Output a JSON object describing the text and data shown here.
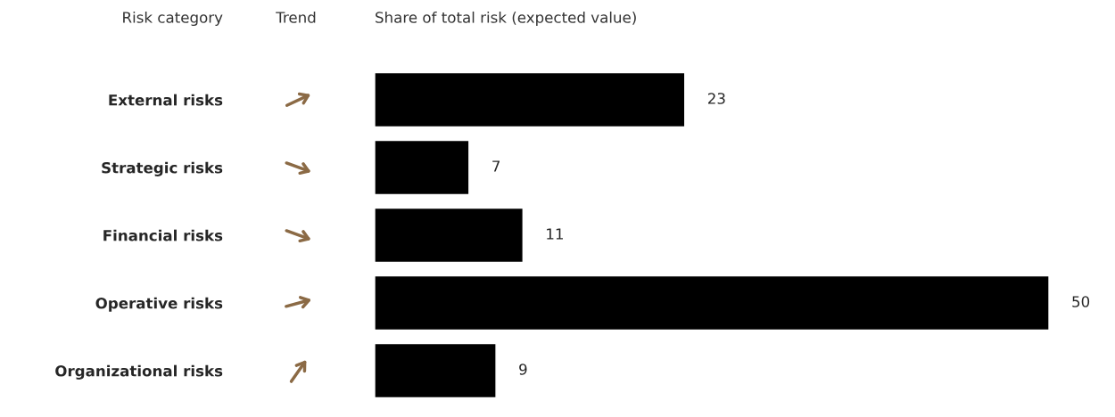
{
  "chart_data": {
    "type": "bar",
    "orientation": "horizontal",
    "title": "Share of total risk (expected value)",
    "ylabel": "Risk category",
    "annotations": [
      "Trend"
    ],
    "categories": [
      "External risks",
      "Strategic risks",
      "Financial risks",
      "Operative risks",
      "Organizational risks"
    ],
    "values": [
      23,
      7,
      11,
      50,
      9
    ],
    "color": "#000000",
    "data_labels": true,
    "grid": false,
    "legend": false
  }
}
